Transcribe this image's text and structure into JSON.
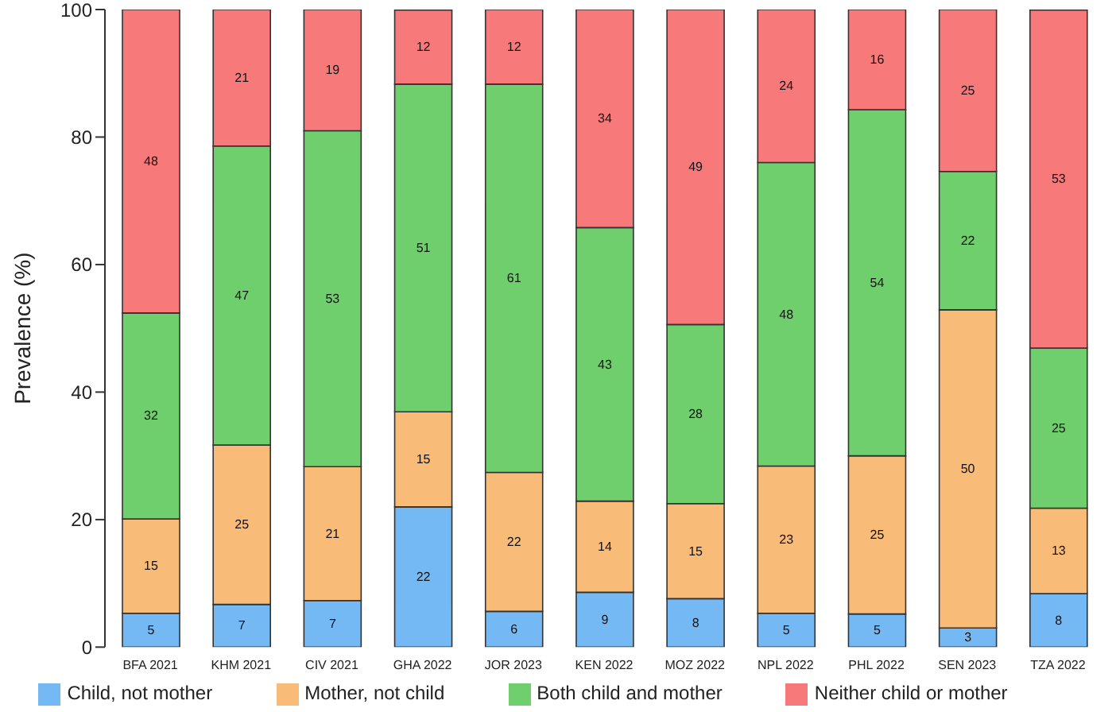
{
  "chart_data": {
    "type": "bar",
    "stacked": true,
    "ylabel": "Prevalence (%)",
    "ylim": [
      0,
      100
    ],
    "yticks": [
      0,
      20,
      40,
      60,
      80,
      100
    ],
    "legend": "bottom",
    "categories": [
      "BFA 2021",
      "KHM 2021",
      "CIV 2021",
      "GHA 2022",
      "JOR 2023",
      "KEN 2022",
      "MOZ 2022",
      "NPL 2022",
      "PHL 2022",
      "SEN 2023",
      "TZA 2022"
    ],
    "series": [
      {
        "name": "Child, not mother",
        "color": "#75b9f4",
        "values": [
          5.3,
          6.7,
          7.3,
          22.0,
          5.6,
          8.6,
          7.6,
          5.3,
          5.2,
          3.0,
          8.4
        ],
        "value_labels": [
          "5",
          "7",
          "7",
          "22",
          "6",
          "9",
          "8",
          "5",
          "5",
          "3",
          "8"
        ]
      },
      {
        "name": "Mother, not child",
        "color": "#f9bb78",
        "values": [
          14.8,
          25.0,
          21.0,
          14.9,
          21.8,
          14.3,
          14.9,
          23.1,
          24.8,
          49.9,
          13.4
        ],
        "value_labels": [
          "15",
          "25",
          "21",
          "15",
          "22",
          "14",
          "15",
          "23",
          "25",
          "50",
          "13"
        ]
      },
      {
        "name": "Both child and mother",
        "color": "#6fcf6c",
        "values": [
          32.3,
          46.9,
          52.7,
          51.4,
          60.9,
          42.9,
          28.1,
          47.6,
          54.3,
          21.7,
          25.1
        ],
        "value_labels": [
          "32",
          "47",
          "53",
          "51",
          "61",
          "43",
          "28",
          "48",
          "54",
          "22",
          "25"
        ]
      },
      {
        "name": "Neither child or mother",
        "color": "#f7797a",
        "values": [
          47.6,
          21.4,
          19.0,
          11.6,
          11.7,
          34.2,
          49.4,
          24.0,
          15.7,
          25.4,
          53.0
        ],
        "value_labels": [
          "48",
          "21",
          "19",
          "12",
          "12",
          "34",
          "49",
          "24",
          "16",
          "25",
          "53"
        ]
      }
    ]
  }
}
